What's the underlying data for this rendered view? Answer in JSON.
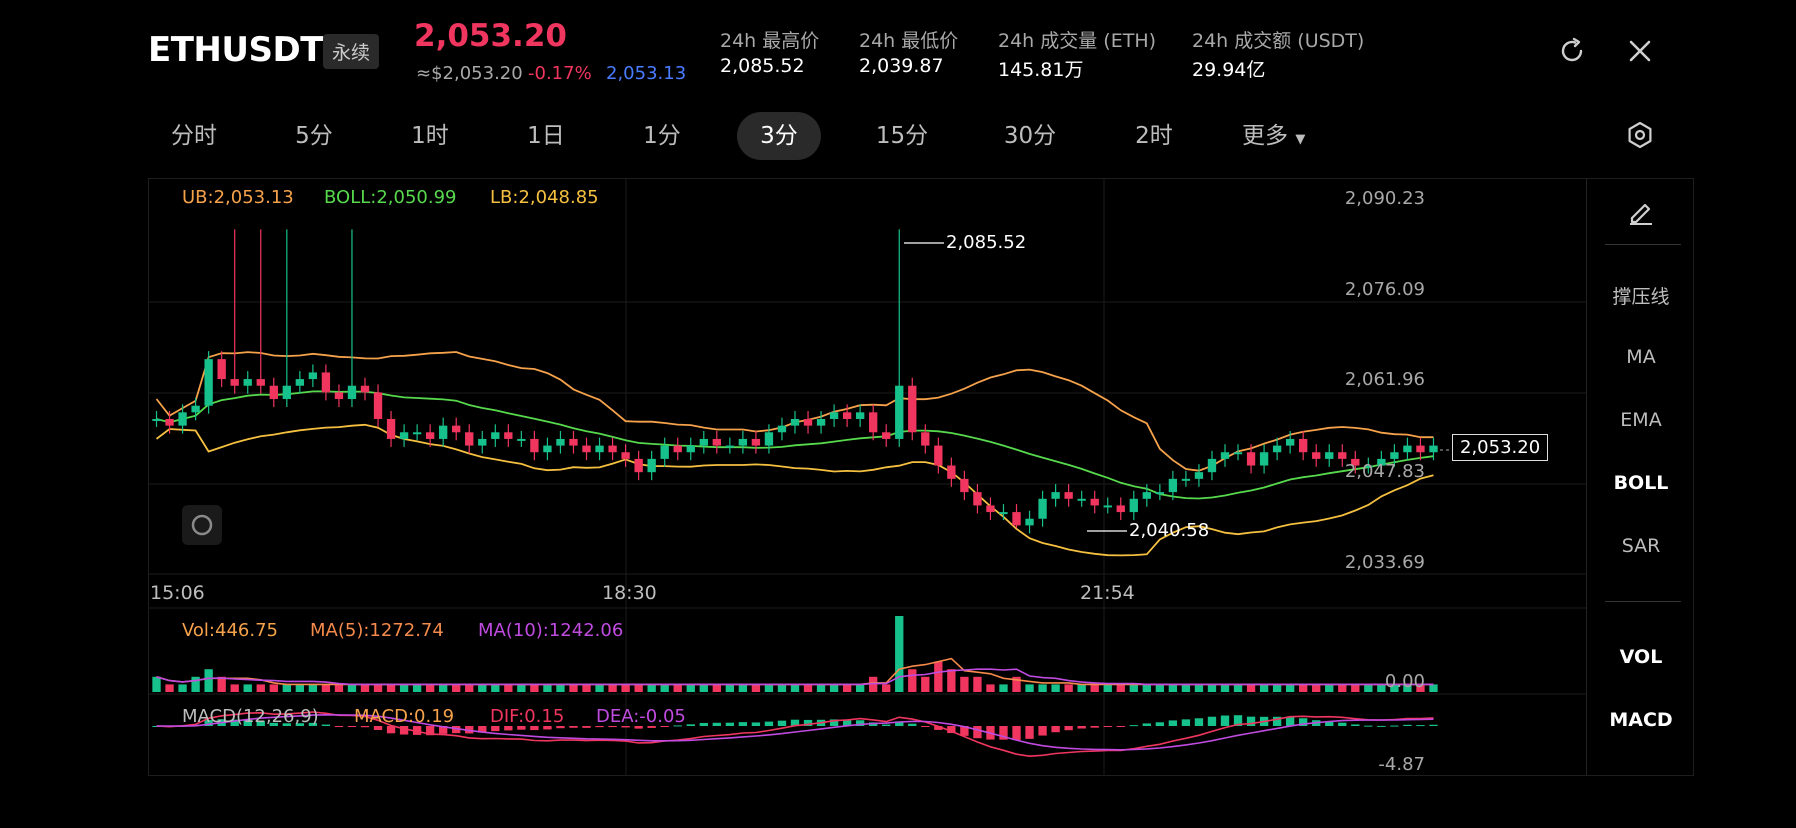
{
  "header": {
    "symbol": "ETHUSDT",
    "badge": "永续",
    "last_price": "2,053.20",
    "usd_price": "≈$2,053.20",
    "change": "-0.17%",
    "mark_price": "2,053.13",
    "stats": [
      {
        "label": "24h 最高价",
        "value": "2,085.52"
      },
      {
        "label": "24h 最低价",
        "value": "2,039.87"
      },
      {
        "label": "24h 成交量 (ETH)",
        "value": "145.81万"
      },
      {
        "label": "24h 成交额 (USDT)",
        "value": "29.94亿"
      }
    ],
    "refresh_icon": "refresh-icon",
    "close_icon": "close-icon"
  },
  "tabs": {
    "items": [
      "分时",
      "5分",
      "1时",
      "1日",
      "1分",
      "3分",
      "15分",
      "30分",
      "2时",
      "更多"
    ],
    "active": "3分",
    "settings_icon": "hexagon-settings-icon"
  },
  "main_chart": {
    "legend": {
      "ub": "UB:2,053.13",
      "boll": "BOLL:2,050.99",
      "lb": "LB:2,048.85"
    },
    "y_ticks": [
      "2,090.23",
      "2,076.09",
      "2,061.96",
      "2,047.83",
      "2,033.69"
    ],
    "x_ticks": [
      "15:06",
      "18:30",
      "21:54"
    ],
    "high_marker": "2,085.52",
    "low_marker": "2,040.58",
    "current_price": "2,053.20",
    "colors": {
      "up": "#17c18b",
      "down": "#f0365f",
      "ub": "#f5a24b",
      "boll": "#57d94d",
      "lb": "#f5c040"
    }
  },
  "volume_panel": {
    "vol": "Vol:446.75",
    "ma5": "MA(5):1272.74",
    "ma10": "MA(10):1242.06",
    "y_tick": "0.00"
  },
  "macd_panel": {
    "title": "MACD(12,26,9)",
    "macd": "MACD:0.19",
    "dif": "DIF:0.15",
    "dea": "DEA:-0.05",
    "y_tick": "-4.87"
  },
  "sidebar": {
    "draw_icon": "pencil-icon",
    "items": [
      "撑压线",
      "MA",
      "EMA",
      "BOLL",
      "SAR"
    ],
    "active": "BOLL",
    "indicators": [
      "VOL",
      "MACD"
    ]
  },
  "chart_data": {
    "type": "candlestick",
    "y_range": [
      2033.69,
      2090.23
    ],
    "x_ticks": [
      "15:06",
      "18:30",
      "21:54"
    ],
    "high": 2085.52,
    "low": 2040.58,
    "current": 2053.2,
    "bollinger": {
      "ub": 2053.13,
      "mid": 2050.99,
      "lb": 2048.85
    },
    "close_series": [
      2057,
      2056,
      2058,
      2059,
      2066,
      2063,
      2062,
      2063,
      2062,
      2060,
      2062,
      2063,
      2064,
      2061,
      2060,
      2062,
      2061,
      2057,
      2054,
      2055,
      2055,
      2054,
      2056,
      2055,
      2053,
      2054,
      2055,
      2054,
      2054,
      2052,
      2053,
      2054,
      2053,
      2052,
      2053,
      2052,
      2051,
      2049,
      2051,
      2053,
      2052,
      2053,
      2054,
      2053,
      2053,
      2054,
      2053,
      2055,
      2056,
      2057,
      2056,
      2057,
      2058,
      2057,
      2058,
      2055,
      2054,
      2062,
      2055,
      2053,
      2050,
      2048,
      2046,
      2044,
      2043,
      2043,
      2041,
      2042,
      2045,
      2046,
      2045,
      2045,
      2044,
      2044,
      2043,
      2045,
      2046,
      2046,
      2048,
      2048,
      2049,
      2051,
      2052,
      2052,
      2050,
      2052,
      2053,
      2054,
      2052,
      2051,
      2052,
      2051,
      2050,
      2050,
      2051,
      2052,
      2053,
      2052,
      2053
    ],
    "volume_series": [
      2,
      1,
      1,
      2,
      3,
      2,
      1,
      1,
      1,
      1,
      1,
      1,
      1,
      1,
      1,
      1,
      1,
      1,
      1,
      1,
      1,
      1,
      1,
      1,
      1,
      1,
      1,
      1,
      1,
      1,
      1,
      1,
      1,
      1,
      1,
      1,
      1,
      1,
      1,
      1,
      1,
      1,
      1,
      1,
      1,
      1,
      1,
      1,
      1,
      1,
      1,
      1,
      1,
      1,
      1,
      2,
      1,
      10,
      3,
      2,
      4,
      3,
      2,
      2,
      1,
      1,
      2,
      1,
      1,
      1,
      1,
      1,
      1,
      1,
      1,
      1,
      1,
      1,
      1,
      1,
      1,
      1,
      1,
      1,
      1,
      1,
      1,
      1,
      1,
      1,
      1,
      1,
      1,
      1,
      1,
      1,
      1,
      1,
      1
    ]
  }
}
